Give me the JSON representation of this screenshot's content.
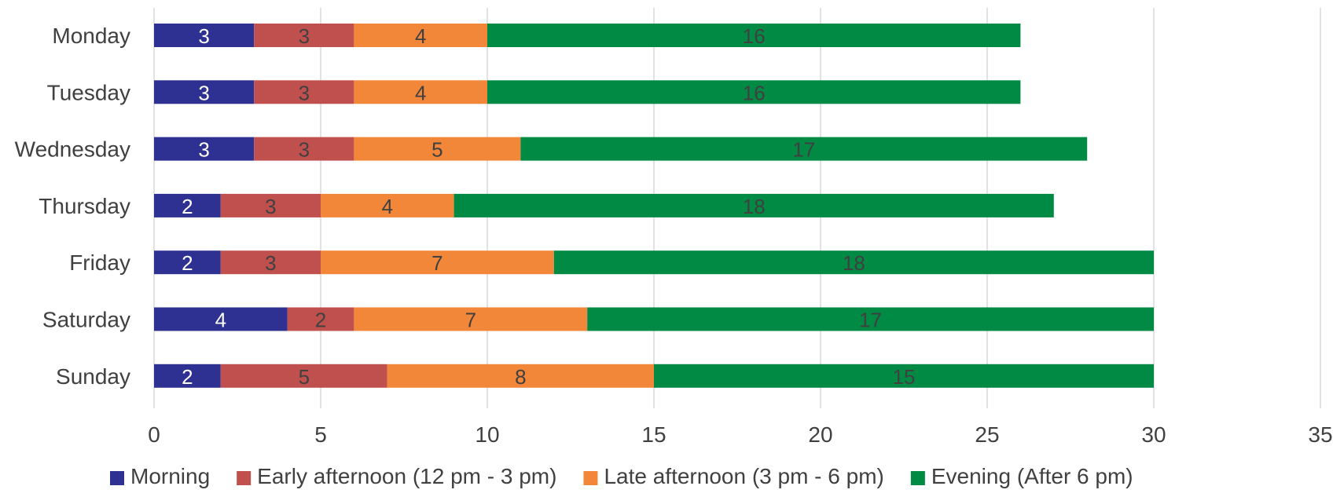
{
  "chart_data": {
    "type": "bar",
    "orientation": "horizontal",
    "stacked": true,
    "categories": [
      "Monday",
      "Tuesday",
      "Wednesday",
      "Thursday",
      "Friday",
      "Saturday",
      "Sunday"
    ],
    "series": [
      {
        "name": "Morning",
        "color": "#2e3192",
        "label_color": "#ffffff",
        "values": [
          3,
          3,
          3,
          2,
          2,
          4,
          2
        ]
      },
      {
        "name": "Early afternoon (12 pm - 3 pm)",
        "color": "#c0504d",
        "label_color": "#404040",
        "values": [
          3,
          3,
          3,
          3,
          3,
          2,
          5
        ]
      },
      {
        "name": "Late afternoon (3 pm - 6 pm)",
        "color": "#f2873a",
        "label_color": "#404040",
        "values": [
          4,
          4,
          5,
          4,
          7,
          7,
          8
        ]
      },
      {
        "name": "Evening (After 6 pm)",
        "color": "#008a44",
        "label_color": "#404040",
        "values": [
          16,
          16,
          17,
          18,
          18,
          17,
          15
        ]
      }
    ],
    "xlim": [
      0,
      35
    ],
    "xticks": [
      0,
      5,
      10,
      15,
      20,
      25,
      30,
      35
    ],
    "grid": "vertical",
    "legend": "bottom",
    "data_labels": true,
    "title": "",
    "xlabel": "",
    "ylabel": ""
  }
}
